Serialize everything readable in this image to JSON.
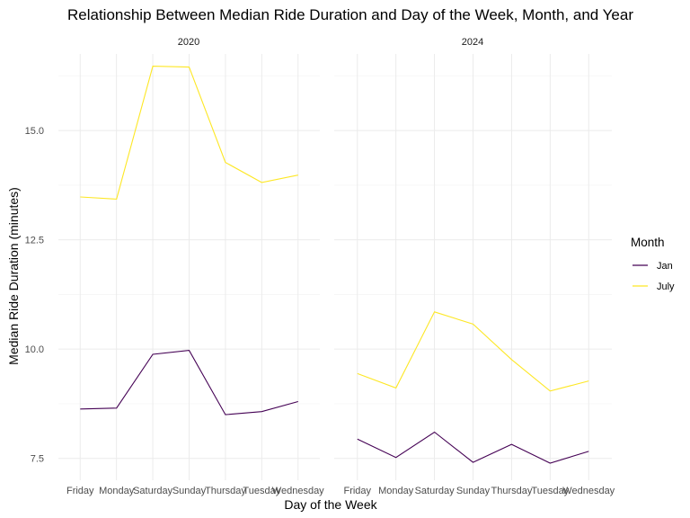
{
  "chart_data": {
    "type": "line",
    "title": "Relationship Between Median Ride Duration and Day of the Week, Month, and Year",
    "xlabel": "Day of the Week",
    "ylabel": "Median Ride Duration (minutes)",
    "categories": [
      "Friday",
      "Monday",
      "Saturday",
      "Sunday",
      "Thursday",
      "Tuesday",
      "Wednesday"
    ],
    "ylim": [
      7.0,
      16.75
    ],
    "yticks": [
      7.5,
      10.0,
      12.5,
      15.0
    ],
    "ytick_labels": [
      "7.5",
      "10.0",
      "12.5",
      "15.0"
    ],
    "grid": true,
    "legend": {
      "title": "Month",
      "position": "right",
      "entries": [
        {
          "label": "Jan",
          "color": "#440154"
        },
        {
          "label": "July",
          "color": "#fde725"
        }
      ]
    },
    "facets": [
      {
        "label": "2020",
        "series": [
          {
            "name": "Jan",
            "color": "#440154",
            "values": [
              8.63,
              8.65,
              9.88,
              9.97,
              8.5,
              8.57,
              8.8
            ]
          },
          {
            "name": "July",
            "color": "#fde725",
            "values": [
              13.48,
              13.43,
              16.47,
              16.45,
              14.27,
              13.81,
              13.98
            ]
          }
        ]
      },
      {
        "label": "2024",
        "series": [
          {
            "name": "Jan",
            "color": "#440154",
            "values": [
              7.94,
              7.52,
              8.1,
              7.41,
              7.82,
              7.39,
              7.66
            ]
          },
          {
            "name": "July",
            "color": "#fde725",
            "values": [
              9.44,
              9.11,
              10.85,
              10.57,
              9.76,
              9.04,
              9.27
            ]
          }
        ]
      }
    ]
  }
}
